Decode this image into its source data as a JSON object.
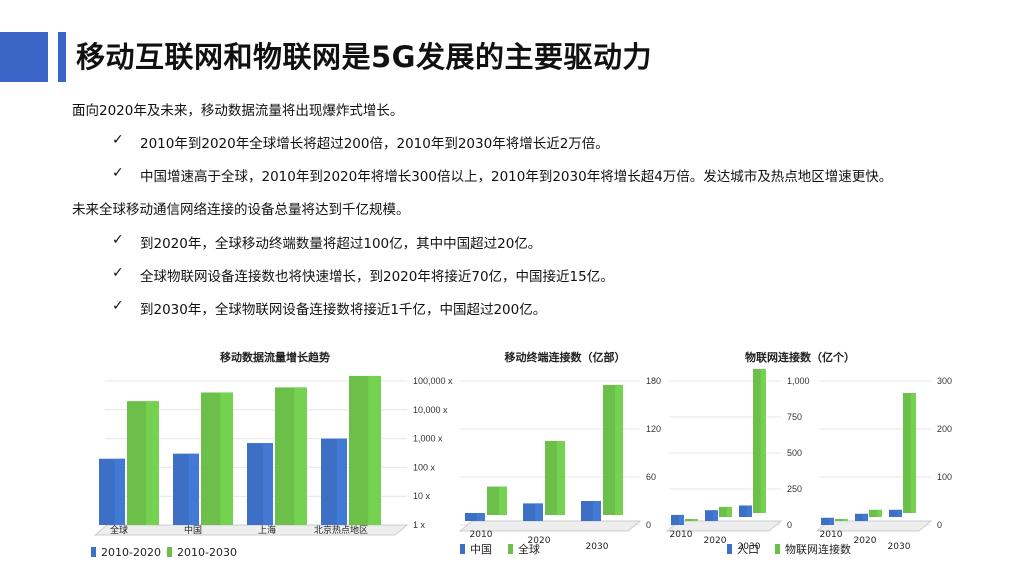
{
  "slide": {
    "title": "移动互联网和物联网是5G发展的主要驱动力",
    "colors": {
      "accent": "#3a64c6",
      "series_blue": "#3d6fc4",
      "series_green": "#6cc04a"
    }
  },
  "content": {
    "p1": "面向2020年及未来，移动数据流量将出现爆炸式增长。",
    "p1_bullets": [
      "2010年到2020年全球增长将超过200倍，2010年到2030年将增长近2万倍。",
      "中国增速高于全球，2010年到2020年将增长300倍以上，2010年到2030年将增长超4万倍。发达城市及热点地区增速更快。"
    ],
    "p2": "未来全球移动通信网络连接的设备总量将达到千亿规模。",
    "p2_bullets": [
      "到2020年，全球移动终端数量将超过100亿，其中中国超过20亿。",
      "全球物联网设备连接数也将快速增长，到2020年将接近70亿，中国接近15亿。",
      "到2030年，全球物联网设备连接数将接近1千亿，中国超过200亿。"
    ],
    "bullet_glyph": "✓"
  },
  "chart_data": [
    {
      "type": "bar",
      "title": "移动数据流量增长趋势",
      "categories": [
        "全球",
        "中国",
        "上海",
        "北京热点地区"
      ],
      "series": [
        {
          "name": "2010-2020",
          "values": [
            200,
            300,
            700,
            1000
          ]
        },
        {
          "name": "2010-2030",
          "values": [
            20000,
            40000,
            60000,
            150000
          ]
        }
      ],
      "y_ticks": [
        "1 x",
        "10 x",
        "100 x",
        "1,000 x",
        "10,000 x",
        "100,000 x"
      ],
      "scale": "log",
      "ylim": [
        1,
        100000
      ],
      "legend": "bottom"
    },
    {
      "type": "bar",
      "title": "移动终端连接数（亿部）",
      "categories": [
        "2010",
        "2020",
        "2030"
      ],
      "series": [
        {
          "name": "中国",
          "values": [
            10,
            22,
            25
          ]
        },
        {
          "name": "全球",
          "values": [
            48,
            105,
            175
          ]
        }
      ],
      "y_ticks": [
        "0",
        "60",
        "120",
        "180"
      ],
      "ylim": [
        0,
        180
      ],
      "legend": "bottom"
    },
    {
      "type": "bar",
      "title": "物联网连接数（亿个）",
      "panels": [
        {
          "categories": [
            "2010",
            "2020",
            "2030"
          ],
          "series": [
            {
              "name": "人口",
              "values": [
                70,
                75,
                80
              ]
            },
            {
              "name": "物联网连接数",
              "values": [
                10,
                70,
                1000
              ]
            }
          ],
          "y_ticks": [
            "0",
            "250",
            "500",
            "750",
            "1,000"
          ],
          "ylim": [
            0,
            1000
          ]
        },
        {
          "categories": [
            "2010",
            "2020",
            "2030"
          ],
          "series": [
            {
              "name": "人口",
              "values": [
                15,
                15,
                15
              ]
            },
            {
              "name": "物联网连接数",
              "values": [
                2,
                15,
                250
              ]
            }
          ],
          "y_ticks": [
            "0",
            "100",
            "200",
            "300"
          ],
          "ylim": [
            0,
            300
          ]
        }
      ],
      "legend": "bottom"
    }
  ]
}
